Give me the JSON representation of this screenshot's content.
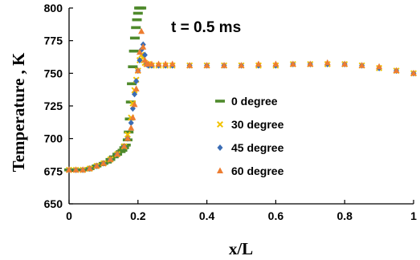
{
  "chart_data": {
    "type": "scatter",
    "title": "",
    "annotation": "t  = 0.5 ms",
    "xlabel": "x/L",
    "ylabel": "Temperature , K",
    "xlim": [
      0,
      1
    ],
    "ylim": [
      650,
      800
    ],
    "x_ticks": [
      0,
      0.2,
      0.4,
      0.6,
      0.8,
      1
    ],
    "x_tick_labels": [
      "0",
      "0.2",
      "0.4",
      "0.6",
      "0.8",
      "1"
    ],
    "y_ticks": [
      650,
      675,
      700,
      725,
      750,
      775,
      800
    ],
    "y_tick_labels": [
      "650",
      "675",
      "700",
      "725",
      "750",
      "775",
      "800"
    ],
    "grid": false,
    "legend_position": "center-right",
    "series": [
      {
        "name": "0 degree",
        "marker": "dash",
        "color": "#4f8a2c",
        "x": [
          0.0,
          0.01,
          0.02,
          0.03,
          0.04,
          0.05,
          0.06,
          0.07,
          0.08,
          0.09,
          0.1,
          0.11,
          0.12,
          0.13,
          0.14,
          0.15,
          0.155,
          0.16,
          0.165,
          0.17,
          0.173,
          0.176,
          0.179,
          0.182,
          0.185,
          0.188,
          0.191,
          0.194,
          0.197,
          0.2,
          0.203,
          0.206,
          0.21
        ],
        "y": [
          676,
          676,
          676,
          676,
          676,
          676,
          677,
          678,
          679,
          680,
          681,
          682,
          684,
          686,
          688,
          690,
          691,
          693,
          695,
          699,
          705,
          715,
          728,
          742,
          755,
          767,
          777,
          785,
          791,
          796,
          800,
          800,
          800
        ]
      },
      {
        "name": "30 degree",
        "marker": "x",
        "color": "#f2c200",
        "x": [
          0.0,
          0.02,
          0.04,
          0.06,
          0.08,
          0.1,
          0.12,
          0.14,
          0.16,
          0.17,
          0.18,
          0.185,
          0.19,
          0.195,
          0.2,
          0.205,
          0.21,
          0.215,
          0.22,
          0.225,
          0.23,
          0.24,
          0.26,
          0.28,
          0.3,
          0.35,
          0.4,
          0.45,
          0.5,
          0.55,
          0.6,
          0.65,
          0.7,
          0.75,
          0.8,
          0.85,
          0.9,
          0.95,
          1.0
        ],
        "y": [
          676,
          676,
          676,
          677,
          679,
          681,
          684,
          688,
          694,
          703,
          716,
          727,
          737,
          745,
          752,
          760,
          764,
          762,
          758,
          757,
          757,
          756,
          756,
          756,
          756,
          756,
          756,
          756,
          756,
          756,
          756,
          757,
          757,
          757,
          757,
          756,
          754,
          752,
          750
        ]
      },
      {
        "name": "45 degree",
        "marker": "diamond",
        "color": "#3b6db5",
        "x": [
          0.0,
          0.02,
          0.04,
          0.06,
          0.08,
          0.1,
          0.12,
          0.14,
          0.16,
          0.17,
          0.18,
          0.185,
          0.19,
          0.195,
          0.2,
          0.205,
          0.21,
          0.215,
          0.22,
          0.225,
          0.23,
          0.24,
          0.26,
          0.28,
          0.3,
          0.35,
          0.4,
          0.45,
          0.5,
          0.55,
          0.6,
          0.65,
          0.7,
          0.75,
          0.8,
          0.85,
          0.9,
          0.95,
          1.0
        ],
        "y": [
          676,
          676,
          676,
          677,
          679,
          681,
          684,
          688,
          694,
          700,
          712,
          723,
          734,
          744,
          752,
          760,
          768,
          772,
          764,
          757,
          756,
          756,
          756,
          756,
          756,
          756,
          756,
          756,
          756,
          756,
          756,
          757,
          757,
          757,
          757,
          756,
          754,
          752,
          750
        ]
      },
      {
        "name": "60 degree",
        "marker": "triangle",
        "color": "#ed7d31",
        "x": [
          0.0,
          0.02,
          0.04,
          0.06,
          0.08,
          0.1,
          0.12,
          0.14,
          0.16,
          0.17,
          0.18,
          0.185,
          0.19,
          0.195,
          0.2,
          0.205,
          0.21,
          0.215,
          0.22,
          0.225,
          0.23,
          0.24,
          0.26,
          0.28,
          0.3,
          0.35,
          0.4,
          0.45,
          0.5,
          0.55,
          0.6,
          0.65,
          0.7,
          0.75,
          0.8,
          0.85,
          0.9,
          0.95,
          1.0
        ],
        "y": [
          676,
          676,
          676,
          677,
          679,
          681,
          684,
          688,
          694,
          700,
          708,
          716,
          726,
          738,
          752,
          766,
          782,
          770,
          760,
          757,
          757,
          757,
          757,
          757,
          757,
          756,
          756,
          756,
          756,
          757,
          757,
          757,
          757,
          758,
          757,
          756,
          755,
          752,
          750
        ]
      }
    ]
  }
}
